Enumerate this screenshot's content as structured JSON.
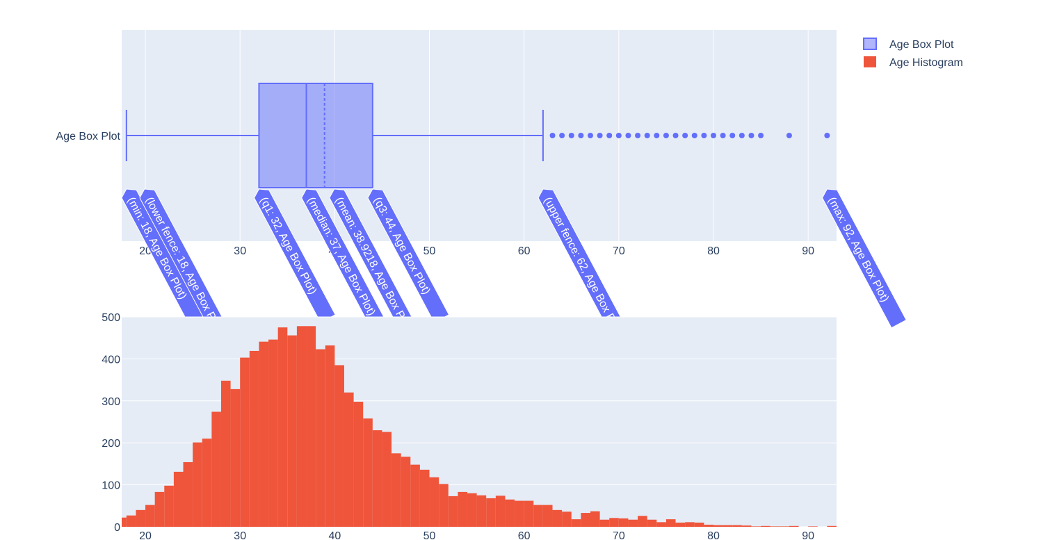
{
  "chart_data": [
    {
      "type": "box",
      "orientation": "horizontal",
      "category": "Age Box Plot",
      "series_name": "Age Box Plot",
      "color": "#636efa",
      "fill": "rgba(99,110,250,0.5)",
      "stats": {
        "min": 18,
        "lower_fence": 18,
        "q1": 32,
        "median": 37,
        "mean": 38.9218,
        "q3": 44,
        "upper_fence": 62,
        "max": 92
      },
      "outliers": [
        63,
        64,
        65,
        66,
        67,
        68,
        69,
        70,
        71,
        72,
        73,
        74,
        75,
        76,
        77,
        78,
        79,
        80,
        81,
        82,
        83,
        84,
        85,
        88,
        92
      ],
      "xlim": [
        17.5,
        93
      ],
      "xticks": [
        20,
        30,
        40,
        50,
        60,
        70,
        80,
        90
      ],
      "grid": true,
      "hover_labels": [
        "(min: 18, Age Box Plot)",
        "(lower fence: 18, Age Box Plot)",
        "(q1: 32, Age Box Plot)",
        "(median: 37, Age Box Plot)",
        "(mean: 38.9218, Age Box Plot)",
        "(q3: 44, Age Box Plot)",
        "(upper fence: 62, Age Box Plot)",
        "(max: 92, Age Box Plot)"
      ],
      "axis_hover_label": "Age Box Plot"
    },
    {
      "type": "bar",
      "series_name": "Age Histogram",
      "color": "#ef553b",
      "bin_width": 1,
      "x": [
        17,
        18,
        19,
        20,
        21,
        22,
        23,
        24,
        25,
        26,
        27,
        28,
        29,
        30,
        31,
        32,
        33,
        34,
        35,
        36,
        37,
        38,
        39,
        40,
        41,
        42,
        43,
        44,
        45,
        46,
        47,
        48,
        49,
        50,
        51,
        52,
        53,
        54,
        55,
        56,
        57,
        58,
        59,
        60,
        61,
        62,
        63,
        64,
        65,
        66,
        67,
        68,
        69,
        70,
        71,
        72,
        73,
        74,
        75,
        76,
        77,
        78,
        79,
        80,
        81,
        82,
        83,
        84,
        85,
        86,
        87,
        88,
        89,
        90,
        91,
        92
      ],
      "values": [
        22,
        27,
        40,
        52,
        83,
        98,
        131,
        154,
        201,
        210,
        274,
        348,
        328,
        403,
        419,
        441,
        446,
        475,
        456,
        478,
        478,
        423,
        432,
        385,
        320,
        298,
        258,
        230,
        226,
        175,
        167,
        148,
        136,
        118,
        102,
        73,
        83,
        80,
        75,
        68,
        74,
        65,
        62,
        62,
        52,
        52,
        40,
        36,
        18,
        33,
        37,
        17,
        21,
        20,
        17,
        26,
        17,
        11,
        18,
        10,
        11,
        10,
        5,
        4,
        4,
        4,
        3,
        1,
        2,
        1,
        1,
        2,
        0,
        1,
        0,
        2
      ],
      "xlim": [
        17.5,
        93
      ],
      "ylim": [
        0,
        500
      ],
      "xticks": [
        20,
        30,
        40,
        50,
        60,
        70,
        80,
        90
      ],
      "yticks": [
        0,
        100,
        200,
        300,
        400,
        500
      ],
      "grid": true
    }
  ],
  "legend": {
    "placement": "top-right",
    "items": [
      {
        "label": "Age Box Plot",
        "color": "#636efa"
      },
      {
        "label": "Age Histogram",
        "color": "#ef553b"
      }
    ]
  }
}
